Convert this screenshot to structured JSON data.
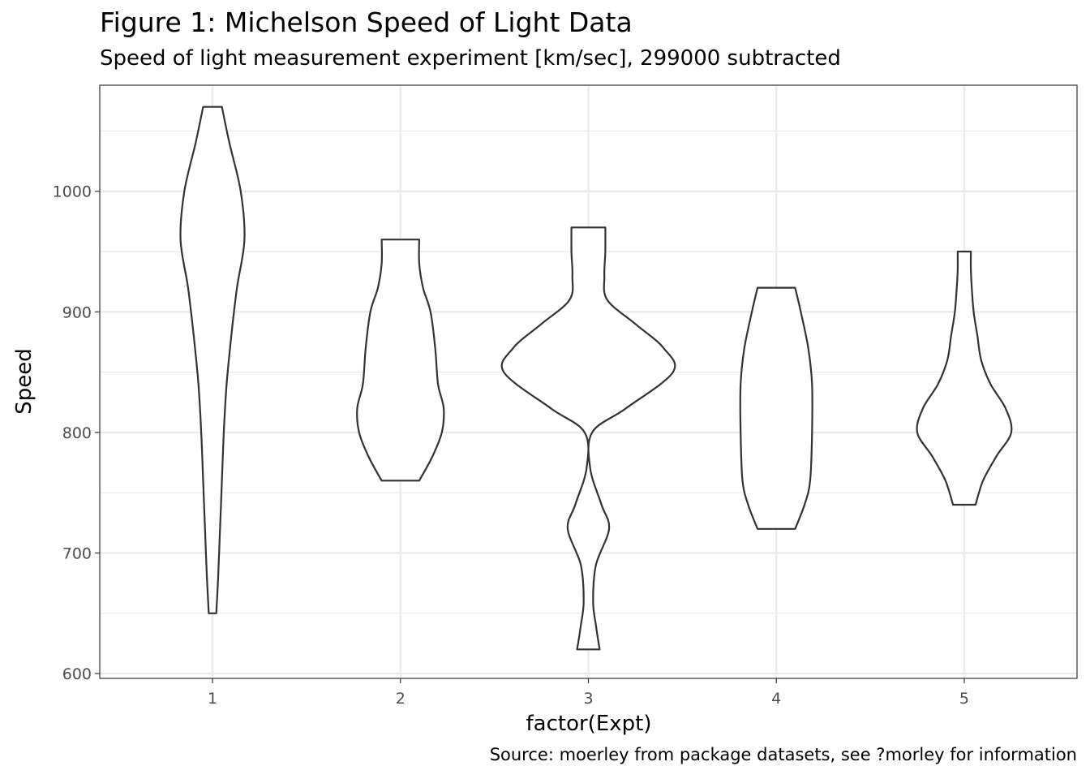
{
  "chart_data": {
    "type": "violin",
    "title": "Figure 1: Michelson Speed of Light Data",
    "subtitle": "Speed of light measurement experiment [km/sec], 299000 subtracted",
    "caption": "Source: moerley from package datasets, see ?morley for information",
    "xlabel": "factor(Expt)",
    "ylabel": "Speed",
    "categories": [
      "1",
      "2",
      "3",
      "4",
      "5"
    ],
    "ylim": [
      596,
      1088
    ],
    "yticks": [
      600,
      700,
      800,
      900,
      1000
    ],
    "grid": true,
    "legend": "none",
    "colors": {
      "outline": "#333333",
      "fill": "#ffffff",
      "grid": "#ebebeb",
      "panel_border": "#333333"
    },
    "series": [
      {
        "category": "1",
        "range": [
          650,
          1070
        ],
        "halfwidth": [
          [
            650,
            0.02
          ],
          [
            680,
            0.03
          ],
          [
            720,
            0.04
          ],
          [
            760,
            0.05
          ],
          [
            800,
            0.06
          ],
          [
            840,
            0.075
          ],
          [
            880,
            0.1
          ],
          [
            920,
            0.13
          ],
          [
            960,
            0.17
          ],
          [
            1000,
            0.15
          ],
          [
            1040,
            0.09
          ],
          [
            1070,
            0.05
          ]
        ]
      },
      {
        "category": "2",
        "range": [
          760,
          960
        ],
        "halfwidth": [
          [
            760,
            0.1
          ],
          [
            780,
            0.17
          ],
          [
            800,
            0.22
          ],
          [
            820,
            0.23
          ],
          [
            840,
            0.2
          ],
          [
            870,
            0.185
          ],
          [
            900,
            0.16
          ],
          [
            920,
            0.12
          ],
          [
            940,
            0.1
          ],
          [
            960,
            0.1
          ]
        ]
      },
      {
        "category": "3",
        "range": [
          620,
          970
        ],
        "halfwidth": [
          [
            620,
            0.06
          ],
          [
            640,
            0.04
          ],
          [
            660,
            0.025
          ],
          [
            690,
            0.04
          ],
          [
            720,
            0.11
          ],
          [
            740,
            0.07
          ],
          [
            770,
            0.01
          ],
          [
            800,
            0.02
          ],
          [
            820,
            0.2
          ],
          [
            850,
            0.45
          ],
          [
            870,
            0.4
          ],
          [
            890,
            0.25
          ],
          [
            910,
            0.1
          ],
          [
            930,
            0.085
          ],
          [
            950,
            0.09
          ],
          [
            970,
            0.09
          ]
        ]
      },
      {
        "category": "4",
        "range": [
          720,
          920
        ],
        "halfwidth": [
          [
            720,
            0.1
          ],
          [
            740,
            0.15
          ],
          [
            760,
            0.18
          ],
          [
            800,
            0.19
          ],
          [
            840,
            0.19
          ],
          [
            870,
            0.17
          ],
          [
            900,
            0.13
          ],
          [
            920,
            0.1
          ]
        ]
      },
      {
        "category": "5",
        "range": [
          740,
          950
        ],
        "halfwidth": [
          [
            740,
            0.06
          ],
          [
            760,
            0.1
          ],
          [
            780,
            0.17
          ],
          [
            800,
            0.25
          ],
          [
            820,
            0.22
          ],
          [
            840,
            0.14
          ],
          [
            860,
            0.09
          ],
          [
            880,
            0.07
          ],
          [
            900,
            0.05
          ],
          [
            920,
            0.04
          ],
          [
            935,
            0.035
          ],
          [
            950,
            0.035
          ]
        ]
      }
    ]
  }
}
